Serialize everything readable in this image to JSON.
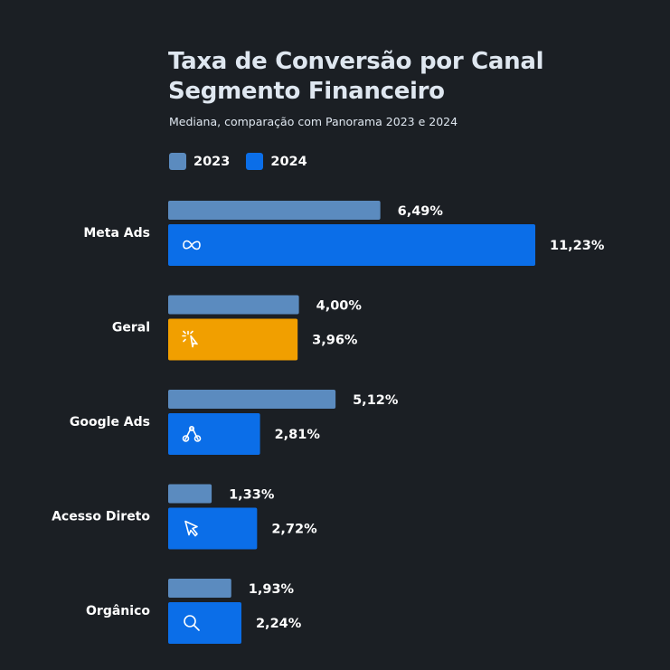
{
  "title_line1": "Taxa de Conversão por Canal",
  "title_line2": "Segmento Financeiro",
  "subtitle": "Mediana, comparação com Panorama 2023 e 2024",
  "colors": {
    "series_2023": "#5b8bbf",
    "series_2024": "#0b6ee8",
    "geral_2024": "#f19f00",
    "background": "#1b1f24"
  },
  "chart_data": {
    "type": "bar",
    "orientation": "horizontal",
    "title": "Taxa de Conversão por Canal Segmento Financeiro",
    "subtitle": "Mediana, comparação com Panorama 2023 e 2024",
    "categories": [
      "Meta Ads",
      "Geral",
      "Google Ads",
      "Acesso Direto",
      "Orgânico"
    ],
    "category_icons": [
      "meta-icon",
      "sparkle-cursor-icon",
      "google-ads-icon",
      "cursor-icon",
      "search-icon"
    ],
    "series": [
      {
        "name": "2023",
        "values": [
          6.49,
          4.0,
          5.12,
          1.33,
          1.93
        ],
        "labels": [
          "6,49%",
          "4,00%",
          "5,12%",
          "1,33%",
          "1,93%"
        ]
      },
      {
        "name": "2024",
        "values": [
          11.23,
          3.96,
          2.81,
          2.72,
          2.24
        ],
        "labels": [
          "11,23%",
          "3,96%",
          "2,81%",
          "2,72%",
          "2,24%"
        ]
      }
    ],
    "legend_position": "top-left",
    "grid": false,
    "xlim": [
      0,
      11.23
    ]
  }
}
